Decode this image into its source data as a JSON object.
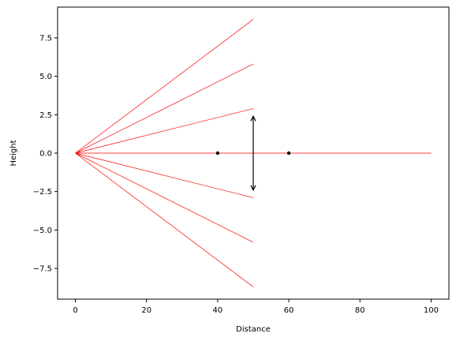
{
  "chart_data": {
    "type": "line",
    "title": "",
    "xlabel": "Distance",
    "ylabel": "Height",
    "xlim": [
      -5,
      105
    ],
    "ylim": [
      -9.5,
      9.5
    ],
    "grid": false,
    "legend": "none",
    "x_ticks": [
      0,
      20,
      40,
      60,
      80,
      100
    ],
    "x_tick_labels": [
      "0",
      "20",
      "40",
      "60",
      "80",
      "100"
    ],
    "y_ticks": [
      7.5,
      5.0,
      2.5,
      0.0,
      -2.5,
      -5.0,
      -7.5
    ],
    "y_tick_labels": [
      "7.5",
      "5.0",
      "2.5",
      "0.0",
      "−2.5",
      "−5.0",
      "−7.5"
    ],
    "series": [
      {
        "x": [
          0,
          50
        ],
        "y": [
          0,
          8.7
        ],
        "color": "#ff0000"
      },
      {
        "x": [
          0,
          50
        ],
        "y": [
          0,
          5.8
        ],
        "color": "#ff0000"
      },
      {
        "x": [
          0,
          50
        ],
        "y": [
          0,
          2.9
        ],
        "color": "#ff0000"
      },
      {
        "x": [
          0,
          100
        ],
        "y": [
          0,
          0
        ],
        "color": "#ff0000"
      },
      {
        "x": [
          0,
          50
        ],
        "y": [
          0,
          -2.9
        ],
        "color": "#ff0000"
      },
      {
        "x": [
          0,
          50
        ],
        "y": [
          0,
          -5.8
        ],
        "color": "#ff0000"
      },
      {
        "x": [
          0,
          50
        ],
        "y": [
          0,
          -8.7
        ],
        "color": "#ff0000"
      }
    ],
    "points": [
      {
        "x": 40,
        "y": 0,
        "color": "#000000"
      },
      {
        "x": 60,
        "y": 0,
        "color": "#000000"
      }
    ],
    "arrow": {
      "x": 50,
      "y_from": -2.4,
      "y_to": 2.4,
      "color": "#000000"
    }
  }
}
